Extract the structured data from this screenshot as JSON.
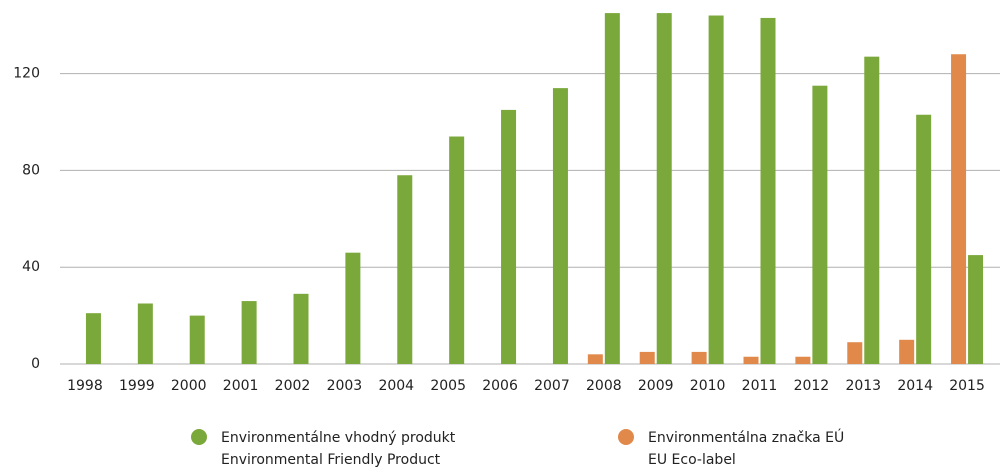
{
  "chart_data": {
    "type": "bar",
    "categories": [
      "1998",
      "1999",
      "2000",
      "2001",
      "2002",
      "2003",
      "2004",
      "2005",
      "2006",
      "2007",
      "2008",
      "2009",
      "2010",
      "2011",
      "2012",
      "2013",
      "2014",
      "2015"
    ],
    "series": [
      {
        "name": [
          "Environmentálna značka EÚ",
          "EU Eco-label"
        ],
        "color": "#e0894a",
        "values": [
          null,
          null,
          null,
          null,
          null,
          null,
          null,
          null,
          null,
          null,
          4,
          5,
          5,
          3,
          3,
          9,
          10,
          128
        ]
      },
      {
        "name": [
          "Environmentálne vhodný produkt",
          "Environmental Friendly Product"
        ],
        "color": "#7aa83a",
        "values": [
          21,
          25,
          20,
          26,
          29,
          46,
          78,
          94,
          105,
          114,
          145,
          145,
          144,
          143,
          115,
          127,
          103,
          45
        ]
      }
    ],
    "ylim": [
      0,
      150
    ],
    "yticks": [
      0,
      40,
      80,
      120
    ],
    "grid": true
  }
}
